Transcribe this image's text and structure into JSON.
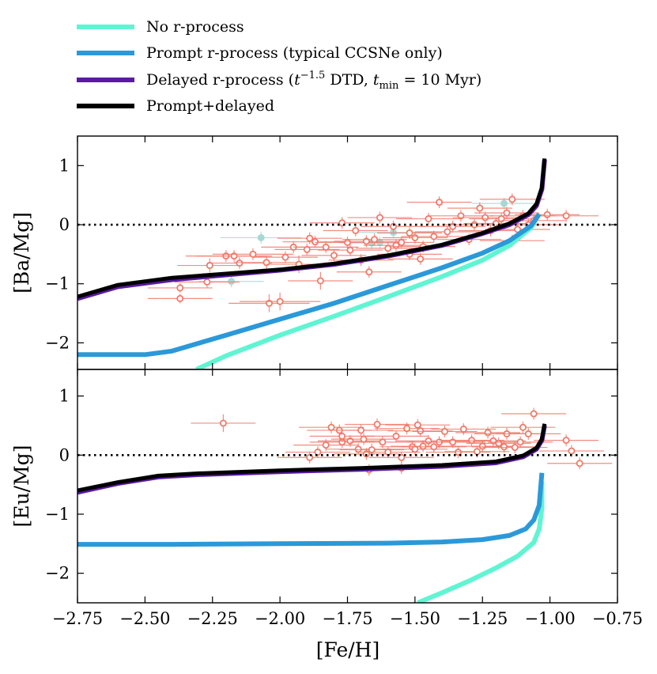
{
  "chart_data": {
    "type": "line",
    "colors": {
      "no_r": "#5ff5d2",
      "prompt": "#2b99d9",
      "delayed": "#5b1aa6",
      "combined": "#000000",
      "obs": "#f07a6a",
      "obs_alt": "#a8d8d4"
    },
    "legend": [
      {
        "key": "no_r",
        "label": "No r-process"
      },
      {
        "key": "prompt",
        "label": "Prompt r-process (typical CCSNe only)"
      },
      {
        "key": "delayed",
        "label": "Delayed r-process (t^{-1.5} DTD, t_min = 10 Myr)",
        "label_parts": [
          "Delayed r-process (",
          "t",
          "−1.5",
          " DTD, ",
          "t",
          "min",
          " = 10 Myr)"
        ]
      },
      {
        "key": "combined",
        "label": "Prompt+delayed"
      }
    ],
    "xlabel": "[Fe/H]",
    "xlim": [
      -2.75,
      -0.75
    ],
    "xticks": [
      "−2.75",
      "−2.50",
      "−2.25",
      "−2.00",
      "−1.75",
      "−1.50",
      "−1.25",
      "−1.00",
      "−0.75"
    ],
    "xtick_values": [
      -2.75,
      -2.5,
      -2.25,
      -2.0,
      -1.75,
      -1.5,
      -1.25,
      -1.0,
      -0.75
    ],
    "panels": [
      {
        "ylabel": "[Ba/Mg]",
        "ylim": [
          -2.45,
          1.5
        ],
        "yticks": [
          "1",
          "0",
          "−1",
          "−2"
        ],
        "ytick_values": [
          1,
          0,
          -1,
          -2
        ],
        "reference_line": 0,
        "series": {
          "no_r": [
            [
              -2.31,
              -2.45
            ],
            [
              -2.2,
              -2.22
            ],
            [
              -2.0,
              -1.87
            ],
            [
              -1.8,
              -1.55
            ],
            [
              -1.6,
              -1.22
            ],
            [
              -1.4,
              -0.88
            ],
            [
              -1.25,
              -0.6
            ],
            [
              -1.15,
              -0.35
            ],
            [
              -1.07,
              -0.05
            ],
            [
              -1.04,
              0.18
            ]
          ],
          "prompt": [
            [
              -2.75,
              -2.2
            ],
            [
              -2.5,
              -2.2
            ],
            [
              -2.4,
              -2.14
            ],
            [
              -2.2,
              -1.87
            ],
            [
              -2.0,
              -1.6
            ],
            [
              -1.8,
              -1.33
            ],
            [
              -1.6,
              -1.03
            ],
            [
              -1.4,
              -0.73
            ],
            [
              -1.25,
              -0.48
            ],
            [
              -1.15,
              -0.27
            ],
            [
              -1.07,
              -0.02
            ],
            [
              -1.04,
              0.18
            ]
          ],
          "delayed": [
            [
              -2.75,
              -1.25
            ],
            [
              -2.6,
              -1.05
            ],
            [
              -2.4,
              -0.93
            ],
            [
              -2.2,
              -0.85
            ],
            [
              -2.0,
              -0.77
            ],
            [
              -1.8,
              -0.67
            ],
            [
              -1.6,
              -0.53
            ],
            [
              -1.4,
              -0.35
            ],
            [
              -1.25,
              -0.15
            ],
            [
              -1.15,
              0.0
            ],
            [
              -1.08,
              0.17
            ],
            [
              -1.05,
              0.32
            ],
            [
              -1.03,
              0.6
            ],
            [
              -1.02,
              1.1
            ]
          ],
          "combined": [
            [
              -2.75,
              -1.22
            ],
            [
              -2.6,
              -1.02
            ],
            [
              -2.4,
              -0.9
            ],
            [
              -2.2,
              -0.83
            ],
            [
              -2.0,
              -0.76
            ],
            [
              -1.8,
              -0.66
            ],
            [
              -1.6,
              -0.52
            ],
            [
              -1.4,
              -0.34
            ],
            [
              -1.25,
              -0.14
            ],
            [
              -1.15,
              0.02
            ],
            [
              -1.08,
              0.19
            ],
            [
              -1.05,
              0.35
            ],
            [
              -1.03,
              0.63
            ],
            [
              -1.02,
              1.12
            ]
          ]
        },
        "observations": [
          [
            -2.37,
            -1.07,
            0.12,
            0.08
          ],
          [
            -2.37,
            -1.25,
            0.12,
            0.08
          ],
          [
            -2.27,
            -0.97,
            0.12,
            0.1
          ],
          [
            -2.26,
            -0.69,
            0.12,
            0.12
          ],
          [
            -2.2,
            -0.53,
            0.15,
            0.1
          ],
          [
            -2.17,
            -0.53,
            0.14,
            0.1
          ],
          [
            -2.15,
            -0.65,
            0.12,
            0.1
          ],
          [
            -2.1,
            -0.5,
            0.15,
            0.1
          ],
          [
            -2.05,
            -0.64,
            0.12,
            0.1
          ],
          [
            -2.04,
            -1.33,
            0.15,
            0.15
          ],
          [
            -2.0,
            -1.3,
            0.15,
            0.15
          ],
          [
            -1.98,
            -0.55,
            0.12,
            0.1
          ],
          [
            -1.95,
            -0.38,
            0.12,
            0.1
          ],
          [
            -1.93,
            -0.67,
            0.12,
            0.15
          ],
          [
            -1.9,
            -0.42,
            0.12,
            0.1
          ],
          [
            -1.89,
            -0.23,
            0.12,
            0.1
          ],
          [
            -1.87,
            -0.29,
            0.12,
            0.1
          ],
          [
            -1.85,
            -0.95,
            0.12,
            0.15
          ],
          [
            -1.83,
            -0.38,
            0.12,
            0.1
          ],
          [
            -1.8,
            -0.52,
            0.12,
            0.1
          ],
          [
            -1.77,
            0.03,
            0.12,
            0.1
          ],
          [
            -1.75,
            -0.3,
            0.12,
            0.1
          ],
          [
            -1.74,
            -0.43,
            0.12,
            0.1
          ],
          [
            -1.72,
            -0.1,
            0.12,
            0.1
          ],
          [
            -1.7,
            -0.6,
            0.12,
            0.1
          ],
          [
            -1.68,
            -0.28,
            0.12,
            0.1
          ],
          [
            -1.67,
            -0.8,
            0.12,
            0.1
          ],
          [
            -1.65,
            -0.25,
            0.12,
            0.1
          ],
          [
            -1.63,
            0.12,
            0.12,
            0.1
          ],
          [
            -1.6,
            -0.4,
            0.12,
            0.1
          ],
          [
            -1.58,
            -0.03,
            0.12,
            0.1
          ],
          [
            -1.55,
            -0.3,
            0.12,
            0.1
          ],
          [
            -1.52,
            -0.5,
            0.12,
            0.1
          ],
          [
            -1.5,
            -0.22,
            0.12,
            0.1
          ],
          [
            -1.48,
            -0.58,
            0.12,
            0.1
          ],
          [
            -1.45,
            0.1,
            0.12,
            0.1
          ],
          [
            -1.43,
            -0.2,
            0.12,
            0.1
          ],
          [
            -1.41,
            0.38,
            0.12,
            0.1
          ],
          [
            -1.38,
            -0.12,
            0.12,
            0.1
          ],
          [
            -1.36,
            -0.03,
            0.12,
            0.1
          ],
          [
            -1.33,
            0.15,
            0.12,
            0.1
          ],
          [
            -1.3,
            -0.25,
            0.12,
            0.1
          ],
          [
            -1.28,
            0.0,
            0.12,
            0.1
          ],
          [
            -1.26,
            0.28,
            0.12,
            0.1
          ],
          [
            -1.24,
            0.12,
            0.12,
            0.1
          ],
          [
            -1.22,
            -0.1,
            0.12,
            0.1
          ],
          [
            -1.2,
            0.02,
            0.12,
            0.1
          ],
          [
            -1.18,
            0.1,
            0.12,
            0.1
          ],
          [
            -1.16,
            0.2,
            0.12,
            0.1
          ],
          [
            -1.14,
            0.43,
            0.12,
            0.1
          ],
          [
            -1.14,
            -0.27,
            0.12,
            0.1
          ],
          [
            -1.12,
            -0.08,
            0.12,
            0.1
          ],
          [
            -1.1,
            0.15,
            0.12,
            0.1
          ],
          [
            -1.08,
            0.0,
            0.12,
            0.1
          ],
          [
            -1.06,
            0.07,
            0.12,
            0.1
          ],
          [
            -1.01,
            0.17,
            0.12,
            0.1
          ],
          [
            -0.94,
            0.15,
            0.12,
            0.1
          ],
          [
            -1.57,
            -0.35,
            0.12,
            0.1
          ],
          [
            -1.47,
            -0.37,
            0.12,
            0.1
          ],
          [
            -1.52,
            -0.14,
            0.12,
            0.1
          ]
        ],
        "observations_alt": [
          [
            -2.07,
            -0.22,
            0.15,
            0.1
          ],
          [
            -2.18,
            -0.96,
            0.12,
            0.1
          ],
          [
            -1.63,
            -0.3,
            0.15,
            0.1
          ],
          [
            -1.58,
            -0.13,
            0.15,
            0.1
          ],
          [
            -1.17,
            0.36,
            0.12,
            0.1
          ],
          [
            -1.66,
            -0.31,
            0.12,
            0.1
          ]
        ]
      },
      {
        "ylabel": "[Eu/Mg]",
        "ylim": [
          -2.5,
          1.45
        ],
        "yticks": [
          "1",
          "0",
          "−1",
          "−2"
        ],
        "ytick_values": [
          1,
          0,
          -1,
          -2
        ],
        "reference_line": 0,
        "series": {
          "no_r": [
            [
              -1.49,
              -2.5
            ],
            [
              -1.4,
              -2.33
            ],
            [
              -1.3,
              -2.13
            ],
            [
              -1.2,
              -1.91
            ],
            [
              -1.12,
              -1.71
            ],
            [
              -1.06,
              -1.48
            ],
            [
              -1.04,
              -1.25
            ],
            [
              -1.03,
              -0.9
            ],
            [
              -1.03,
              -0.45
            ]
          ],
          "prompt": [
            [
              -2.75,
              -1.51
            ],
            [
              -2.4,
              -1.51
            ],
            [
              -2.0,
              -1.5
            ],
            [
              -1.6,
              -1.49
            ],
            [
              -1.4,
              -1.47
            ],
            [
              -1.25,
              -1.43
            ],
            [
              -1.15,
              -1.36
            ],
            [
              -1.09,
              -1.25
            ],
            [
              -1.06,
              -1.1
            ],
            [
              -1.04,
              -0.85
            ],
            [
              -1.03,
              -0.3
            ]
          ],
          "delayed": [
            [
              -2.75,
              -0.63
            ],
            [
              -2.6,
              -0.48
            ],
            [
              -2.45,
              -0.37
            ],
            [
              -2.3,
              -0.33
            ],
            [
              -2.0,
              -0.28
            ],
            [
              -1.7,
              -0.24
            ],
            [
              -1.4,
              -0.19
            ],
            [
              -1.2,
              -0.13
            ],
            [
              -1.1,
              -0.03
            ],
            [
              -1.05,
              0.1
            ],
            [
              -1.03,
              0.25
            ],
            [
              -1.02,
              0.5
            ]
          ],
          "combined": [
            [
              -2.75,
              -0.6
            ],
            [
              -2.6,
              -0.46
            ],
            [
              -2.45,
              -0.35
            ],
            [
              -2.3,
              -0.31
            ],
            [
              -2.0,
              -0.26
            ],
            [
              -1.7,
              -0.22
            ],
            [
              -1.4,
              -0.17
            ],
            [
              -1.2,
              -0.11
            ],
            [
              -1.1,
              -0.01
            ],
            [
              -1.05,
              0.12
            ],
            [
              -1.03,
              0.27
            ],
            [
              -1.02,
              0.53
            ]
          ]
        },
        "observations": [
          [
            -2.21,
            0.54,
            0.12,
            0.15
          ],
          [
            -1.89,
            -0.04,
            0.12,
            0.1
          ],
          [
            -1.86,
            0.05,
            0.12,
            0.1
          ],
          [
            -1.83,
            0.17,
            0.12,
            0.1
          ],
          [
            -1.81,
            0.47,
            0.12,
            0.1
          ],
          [
            -1.78,
            0.42,
            0.12,
            0.1
          ],
          [
            -1.77,
            0.22,
            0.12,
            0.1
          ],
          [
            -1.77,
            0.32,
            0.12,
            0.1
          ],
          [
            -1.74,
            0.24,
            0.12,
            0.1
          ],
          [
            -1.71,
            0.1,
            0.12,
            0.1
          ],
          [
            -1.7,
            0.42,
            0.12,
            0.1
          ],
          [
            -1.69,
            0.27,
            0.12,
            0.1
          ],
          [
            -1.68,
            0.02,
            0.12,
            0.1
          ],
          [
            -1.67,
            -0.25,
            0.12,
            0.1
          ],
          [
            -1.66,
            0.09,
            0.12,
            0.1
          ],
          [
            -1.64,
            0.52,
            0.12,
            0.1
          ],
          [
            -1.62,
            0.22,
            0.12,
            0.1
          ],
          [
            -1.6,
            0.05,
            0.12,
            0.1
          ],
          [
            -1.57,
            0.32,
            0.12,
            0.1
          ],
          [
            -1.55,
            -0.04,
            0.12,
            0.1
          ],
          [
            -1.53,
            0.45,
            0.12,
            0.1
          ],
          [
            -1.51,
            0.14,
            0.12,
            0.1
          ],
          [
            -1.5,
            0.1,
            0.12,
            0.1
          ],
          [
            -1.49,
            0.51,
            0.12,
            0.1
          ],
          [
            -1.48,
            0.41,
            0.12,
            0.1
          ],
          [
            -1.47,
            0.15,
            0.12,
            0.1
          ],
          [
            -1.45,
            0.24,
            0.12,
            0.1
          ],
          [
            -1.43,
            0.14,
            0.12,
            0.1
          ],
          [
            -1.41,
            0.22,
            0.12,
            0.1
          ],
          [
            -1.39,
            0.4,
            0.12,
            0.1
          ],
          [
            -1.36,
            0.22,
            0.12,
            0.1
          ],
          [
            -1.34,
            0.05,
            0.12,
            0.1
          ],
          [
            -1.32,
            0.44,
            0.12,
            0.1
          ],
          [
            -1.29,
            0.25,
            0.12,
            0.1
          ],
          [
            -1.27,
            0.06,
            0.12,
            0.1
          ],
          [
            -1.25,
            0.15,
            0.12,
            0.1
          ],
          [
            -1.23,
            0.38,
            0.12,
            0.1
          ],
          [
            -1.21,
            0.24,
            0.12,
            0.1
          ],
          [
            -1.19,
            0.2,
            0.12,
            0.1
          ],
          [
            -1.17,
            0.14,
            0.12,
            0.1
          ],
          [
            -1.16,
            0.36,
            0.12,
            0.1
          ],
          [
            -1.13,
            0.13,
            0.12,
            0.1
          ],
          [
            -1.11,
            0.22,
            0.12,
            0.1
          ],
          [
            -1.1,
            0.47,
            0.12,
            0.1
          ],
          [
            -1.08,
            0.36,
            0.12,
            0.1
          ],
          [
            -1.06,
            0.7,
            0.12,
            0.1
          ],
          [
            -0.94,
            0.25,
            0.12,
            0.1
          ],
          [
            -0.92,
            0.07,
            0.12,
            0.1
          ],
          [
            -0.89,
            -0.14,
            0.12,
            0.1
          ],
          [
            -1.55,
            -0.22,
            0.12,
            0.1
          ]
        ]
      }
    ]
  }
}
